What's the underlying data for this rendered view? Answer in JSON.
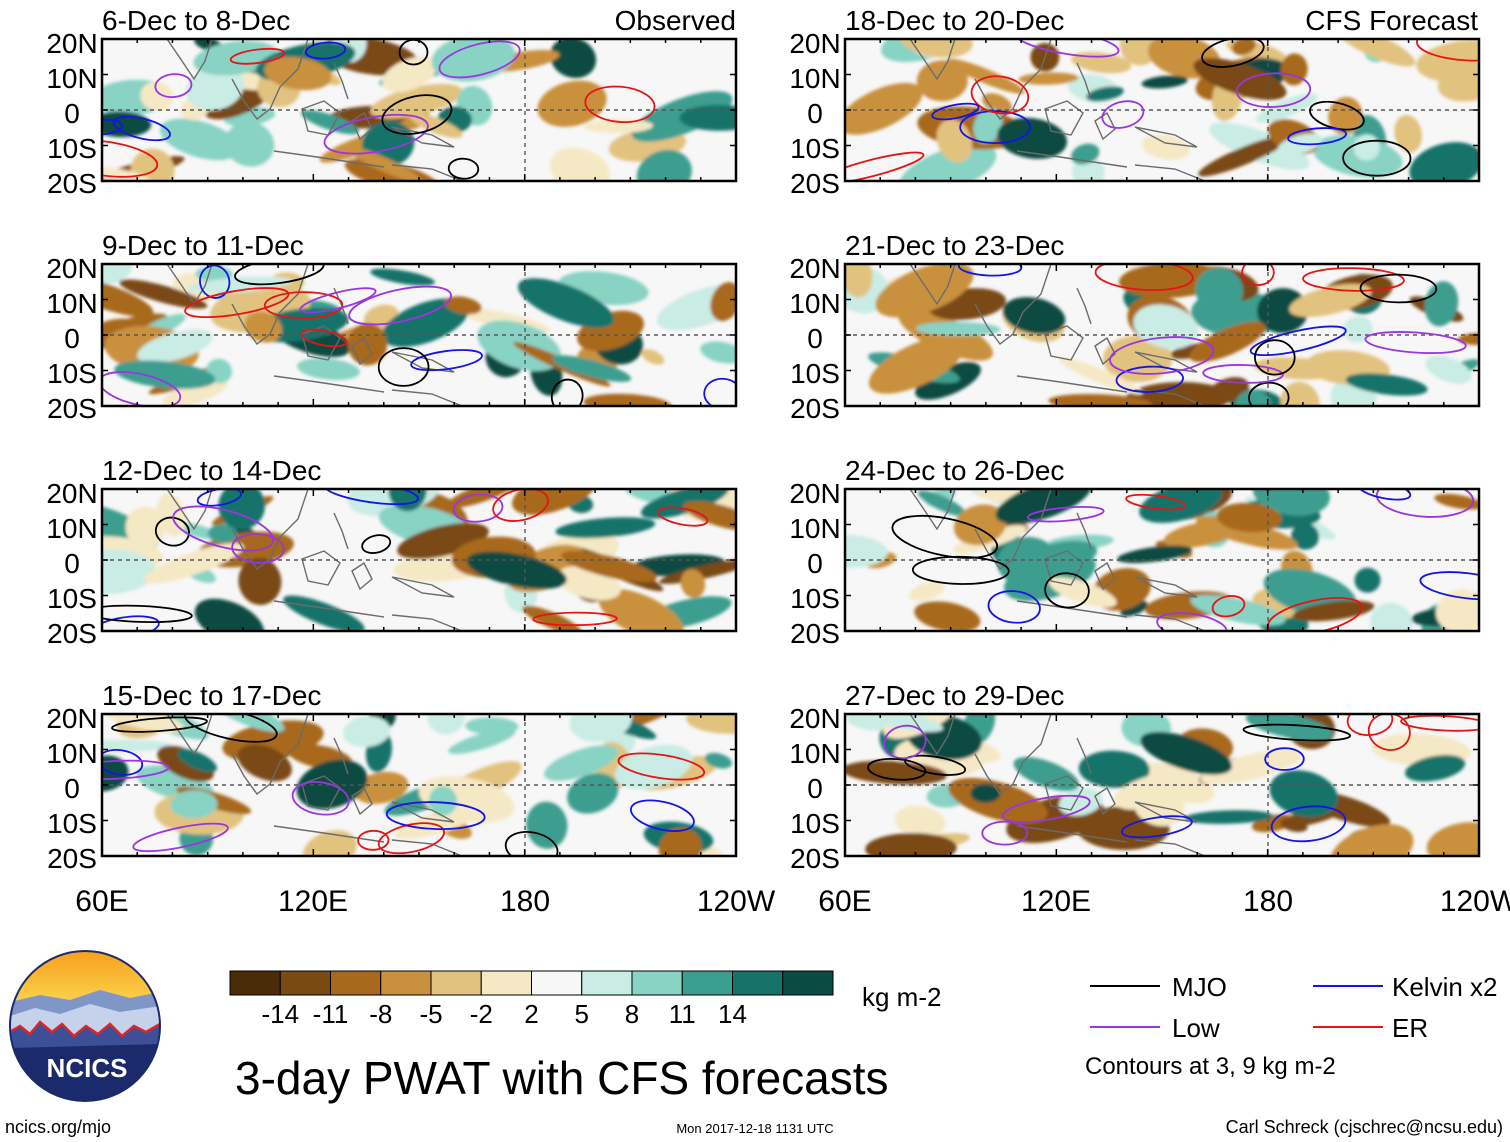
{
  "title": "3-day PWAT with CFS forecasts",
  "source_url": "ncics.org/mjo",
  "timestamp": "Mon 2017-12-18 1131 UTC",
  "author": "Carl Schreck (cjschrec@ncsu.edu)",
  "logo": {
    "text": "NCICS"
  },
  "columns": [
    {
      "header": "Observed",
      "panels": [
        "6-Dec to 8-Dec",
        "9-Dec to 11-Dec",
        "12-Dec to 14-Dec",
        "15-Dec to 17-Dec"
      ]
    },
    {
      "header": "CFS Forecast",
      "panels": [
        "18-Dec to 20-Dec",
        "21-Dec to 23-Dec",
        "24-Dec to 26-Dec",
        "27-Dec to 29-Dec"
      ]
    }
  ],
  "lat_labels": [
    "20N",
    "10N",
    "0",
    "10S",
    "20S"
  ],
  "lon_labels": [
    "60E",
    "120E",
    "180",
    "120W"
  ],
  "colorbar": {
    "unit": "kg m-2",
    "tick_labels": [
      "-14",
      "-11",
      "-8",
      "-5",
      "-2",
      "2",
      "5",
      "8",
      "11",
      "14"
    ],
    "colors": [
      "#4a2c08",
      "#7a4a14",
      "#a8691f",
      "#c9913e",
      "#e2c27f",
      "#f5e8c4",
      "#f7f7f7",
      "#c9ece4",
      "#88d3c4",
      "#3c9e8f",
      "#16736a",
      "#0a4b43"
    ]
  },
  "legend": {
    "items": [
      {
        "label": "MJO",
        "color": "#000000"
      },
      {
        "label": "Kelvin x2",
        "color": "#1414e6"
      },
      {
        "label": "Low",
        "color": "#9a35e0"
      },
      {
        "label": "ER",
        "color": "#e61414"
      }
    ],
    "note": "Contours at 3, 9 kg m-2"
  }
}
